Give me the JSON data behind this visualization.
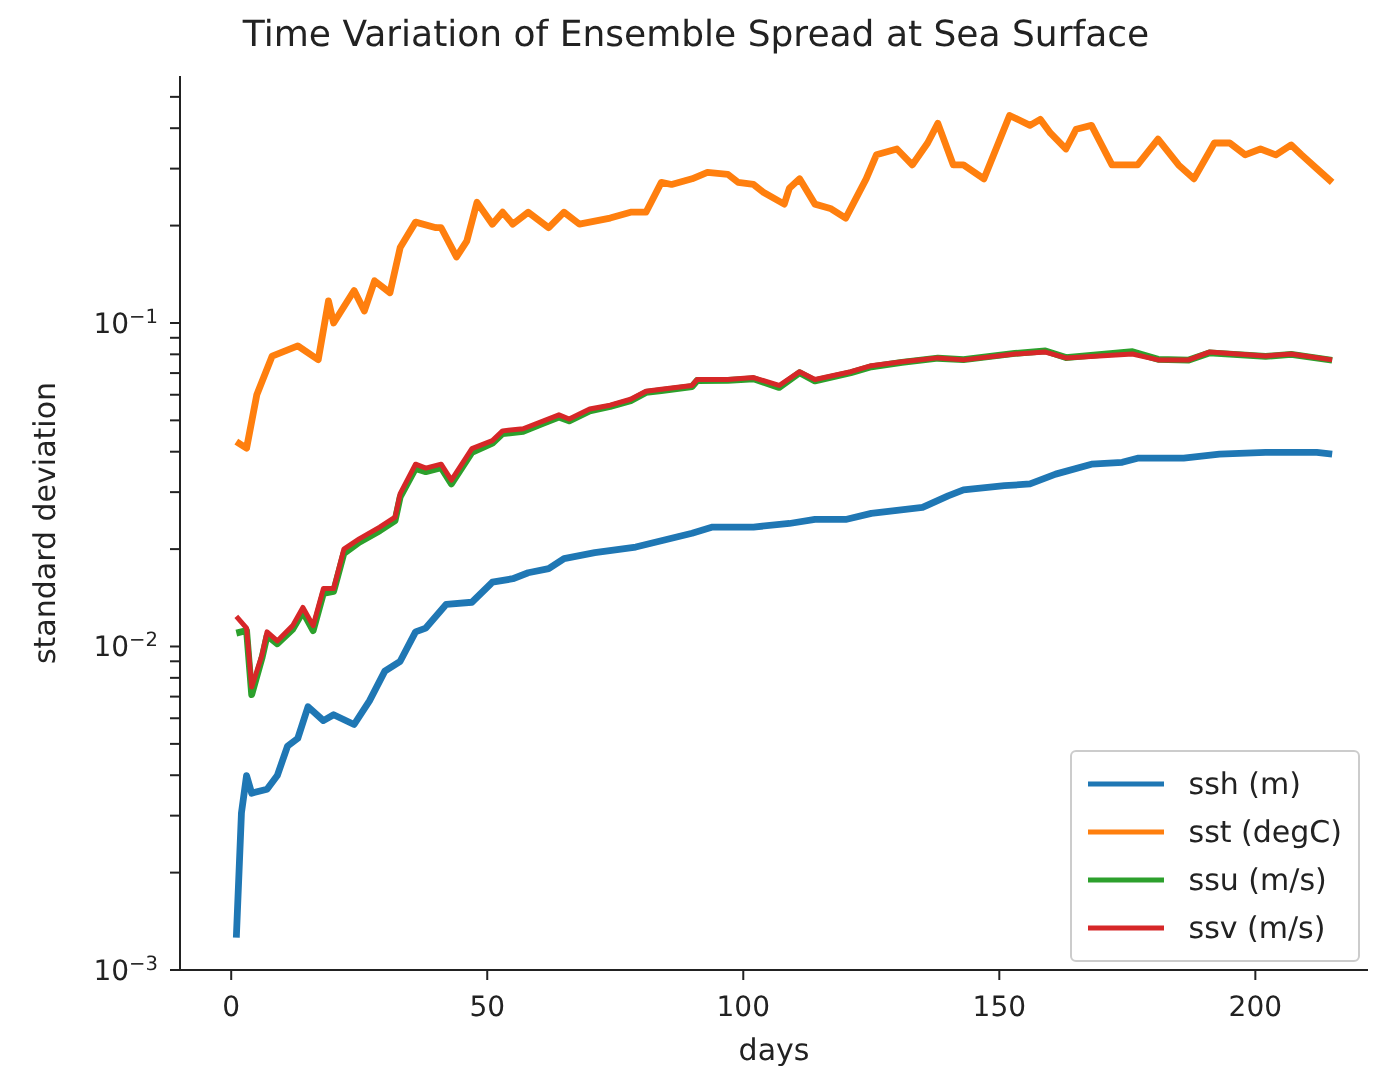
{
  "chart_data": {
    "type": "line",
    "title": "Time Variation of Ensemble Spread at Sea Surface",
    "xlabel": "days",
    "ylabel": "standard deviation",
    "log": "y",
    "legend": "bottom right",
    "xlim": [
      -10,
      222
    ],
    "xticks": [
      0,
      50,
      100,
      150,
      200
    ],
    "ylim": [
      0.001,
      0.58
    ],
    "yticks": [
      {
        "value": 0.001,
        "label": "10$^{−3}$"
      },
      {
        "value": 0.002,
        "label": null
      },
      {
        "value": 0.003,
        "label": null
      },
      {
        "value": 0.004,
        "label": null
      },
      {
        "value": 0.005,
        "label": null
      },
      {
        "value": 0.006,
        "label": null
      },
      {
        "value": 0.007,
        "label": null
      },
      {
        "value": 0.008,
        "label": null
      },
      {
        "value": 0.009,
        "label": null
      },
      {
        "value": 0.01,
        "label": "10$^{−2}$"
      },
      {
        "value": 0.02,
        "label": null
      },
      {
        "value": 0.03,
        "label": null
      },
      {
        "value": 0.04,
        "label": null
      },
      {
        "value": 0.05,
        "label": null
      },
      {
        "value": 0.06,
        "label": null
      },
      {
        "value": 0.07,
        "label": null
      },
      {
        "value": 0.08,
        "label": null
      },
      {
        "value": 0.09,
        "label": null
      },
      {
        "value": 0.1,
        "label": "10$^{−1}$"
      },
      {
        "value": 0.2,
        "label": null
      },
      {
        "value": 0.3,
        "label": null
      },
      {
        "value": 0.4,
        "label": null
      },
      {
        "value": 0.5,
        "label": null
      }
    ],
    "series": [
      {
        "name": "ssh (m)",
        "color": "#1f77b4",
        "x": [
          1,
          2,
          3,
          4,
          7,
          9,
          11,
          13,
          15,
          18,
          20,
          24,
          27,
          30,
          33,
          36,
          38,
          42,
          47,
          51,
          55,
          58,
          62,
          65,
          71,
          79,
          90,
          94,
          102,
          109,
          114,
          120,
          125,
          135,
          140,
          143,
          151,
          156,
          161,
          168,
          174,
          177,
          186,
          193,
          202,
          212,
          215
        ],
        "values": [
          0.00126,
          0.00306,
          0.00399,
          0.00352,
          0.00362,
          0.00399,
          0.00492,
          0.0052,
          0.00651,
          0.0059,
          0.00615,
          0.00574,
          0.00679,
          0.00839,
          0.009,
          0.0111,
          0.0114,
          0.0135,
          0.0137,
          0.0158,
          0.0162,
          0.0169,
          0.0174,
          0.0187,
          0.0195,
          0.0203,
          0.0224,
          0.0234,
          0.0234,
          0.024,
          0.0247,
          0.0247,
          0.0258,
          0.0269,
          0.0292,
          0.0305,
          0.0314,
          0.0318,
          0.0341,
          0.0366,
          0.0371,
          0.0382,
          0.0382,
          0.0393,
          0.0398,
          0.0398,
          0.0393
        ]
      },
      {
        "name": "sst (degC)",
        "color": "#ff7f0e",
        "x": [
          1,
          3,
          5,
          8,
          13,
          17,
          19,
          20,
          24,
          26,
          28,
          31,
          33,
          36,
          40,
          41,
          44,
          46,
          48,
          51,
          53,
          55,
          58,
          62,
          65,
          68,
          74,
          78,
          81,
          84,
          86,
          90,
          93,
          97,
          99,
          102,
          104,
          108,
          109,
          111,
          114,
          117,
          120,
          124,
          126,
          130,
          133,
          136,
          138,
          141,
          143,
          147,
          152,
          156,
          158,
          160,
          163,
          165,
          168,
          172,
          177,
          181,
          185,
          188,
          192,
          195,
          198,
          201,
          204,
          207,
          209,
          212,
          215
        ],
        "values": [
          0.043,
          0.041,
          0.06,
          0.079,
          0.085,
          0.077,
          0.117,
          0.1,
          0.126,
          0.109,
          0.135,
          0.124,
          0.171,
          0.205,
          0.197,
          0.197,
          0.16,
          0.179,
          0.236,
          0.202,
          0.22,
          0.202,
          0.22,
          0.197,
          0.22,
          0.202,
          0.211,
          0.22,
          0.22,
          0.272,
          0.268,
          0.279,
          0.292,
          0.288,
          0.272,
          0.268,
          0.253,
          0.233,
          0.261,
          0.279,
          0.233,
          0.226,
          0.211,
          0.279,
          0.331,
          0.345,
          0.308,
          0.36,
          0.414,
          0.308,
          0.308,
          0.279,
          0.438,
          0.408,
          0.426,
          0.386,
          0.345,
          0.397,
          0.408,
          0.308,
          0.308,
          0.37,
          0.308,
          0.279,
          0.36,
          0.36,
          0.331,
          0.345,
          0.331,
          0.355,
          0.331,
          0.3,
          0.272
        ]
      },
      {
        "name": "ssu (m/s)",
        "color": "#2ca02c",
        "x": [
          1,
          3,
          4,
          6,
          7,
          9,
          12,
          14,
          16,
          18,
          20,
          22,
          25,
          29,
          32,
          33,
          36,
          38,
          41,
          43,
          47,
          51,
          53,
          57,
          61,
          64,
          66,
          70,
          74,
          78,
          81,
          84,
          90,
          91,
          97,
          102,
          107,
          111,
          114,
          121,
          125,
          131,
          138,
          143,
          153,
          159,
          163,
          176,
          181,
          187,
          191,
          202,
          207,
          215
        ],
        "values": [
          0.011,
          0.0112,
          0.0071,
          0.0092,
          0.0108,
          0.0102,
          0.0113,
          0.0128,
          0.0112,
          0.0146,
          0.0148,
          0.0194,
          0.021,
          0.0228,
          0.0245,
          0.029,
          0.0355,
          0.0347,
          0.0357,
          0.0318,
          0.0398,
          0.0425,
          0.0455,
          0.0462,
          0.049,
          0.0512,
          0.0498,
          0.0535,
          0.0552,
          0.0575,
          0.061,
          0.0618,
          0.0636,
          0.0664,
          0.0665,
          0.0672,
          0.0632,
          0.0702,
          0.0662,
          0.0702,
          0.0732,
          0.0755,
          0.0778,
          0.077,
          0.0805,
          0.082,
          0.0782,
          0.0815,
          0.0772,
          0.0768,
          0.0808,
          0.0788,
          0.08,
          0.0767
        ]
      },
      {
        "name": "ssv (m/s)",
        "color": "#d62728",
        "x": [
          1,
          3,
          4,
          6,
          7,
          9,
          12,
          14,
          16,
          18,
          20,
          22,
          25,
          29,
          32,
          33,
          36,
          38,
          41,
          43,
          47,
          51,
          53,
          57,
          61,
          64,
          66,
          70,
          74,
          78,
          81,
          84,
          90,
          91,
          97,
          102,
          107,
          111,
          114,
          121,
          125,
          131,
          138,
          143,
          153,
          159,
          163,
          176,
          181,
          187,
          191,
          202,
          207,
          215
        ],
        "values": [
          0.0124,
          0.0114,
          0.0075,
          0.0094,
          0.0111,
          0.0104,
          0.0116,
          0.0132,
          0.0116,
          0.0151,
          0.0151,
          0.02,
          0.0215,
          0.0234,
          0.0251,
          0.0297,
          0.0366,
          0.0356,
          0.0366,
          0.0327,
          0.0409,
          0.0433,
          0.0464,
          0.0471,
          0.0498,
          0.052,
          0.0505,
          0.0542,
          0.0557,
          0.0581,
          0.0615,
          0.0624,
          0.0641,
          0.0669,
          0.0669,
          0.0678,
          0.0641,
          0.0707,
          0.0669,
          0.0707,
          0.0738,
          0.0759,
          0.078,
          0.0769,
          0.0802,
          0.0813,
          0.078,
          0.0802,
          0.0769,
          0.0769,
          0.0813,
          0.0791,
          0.0802,
          0.0769
        ]
      }
    ]
  }
}
